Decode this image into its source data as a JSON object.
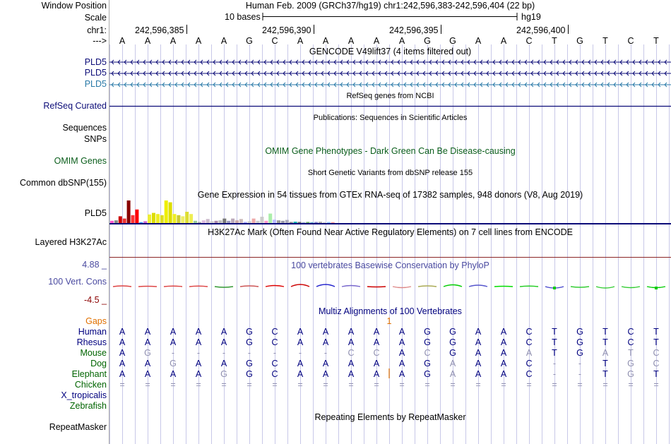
{
  "header": {
    "window_position_label": "Window Position",
    "scale_label": "Scale",
    "chrom_label": "chr1:",
    "arrow_label": "--->",
    "assembly_info": "Human Feb. 2009 (GRCh37/hg19)   chr1:242,596,383-242,596,404 (22 bp)",
    "scale_text": "10 bases",
    "db_name": "hg19",
    "ruler_ticks": [
      "242,596,385",
      "242,596,390",
      "242,596,395",
      "242,596,400"
    ]
  },
  "bases": [
    "A",
    "A",
    "A",
    "A",
    "A",
    "G",
    "C",
    "A",
    "A",
    "A",
    "A",
    "A",
    "G",
    "G",
    "A",
    "A",
    "C",
    "T",
    "G",
    "T",
    "C",
    "T"
  ],
  "tracks": {
    "gencode_title": "GENCODE V49lift37 (4 items filtered out)",
    "gencode_items": [
      "PLD5",
      "PLD5",
      "PLD5"
    ],
    "refseq_title": "RefSeq genes from NCBI",
    "refseq_label": "RefSeq Curated",
    "publications_title": "Publications: Sequences in Scientific Articles",
    "sequences_label": "Sequences",
    "snps_label": "SNPs",
    "omim_title": "OMIM Gene Phenotypes - Dark Green Can Be Disease-causing",
    "omim_label": "OMIM Genes",
    "dbsnp_title": "Short Genetic Variants from dbSNP release 155",
    "dbsnp_label": "Common dbSNP(155)",
    "gtex_title": "Gene Expression in 54 tissues from GTEx RNA-seq of 17382 samples, 948 donors (V8, Aug 2019)",
    "gtex_label": "PLD5",
    "h3k27ac_title": "H3K27Ac Mark (Often Found Near Active Regulatory Elements) on 7 cell lines from ENCODE",
    "h3k27ac_label": "Layered H3K27Ac",
    "cons_title": "100 vertebrates Basewise Conservation by PhyloP",
    "cons_label": "100 Vert. Cons",
    "cons_max": "4.88 _",
    "cons_min": "-4.5 _",
    "multiz_title": "Multiz Alignments of 100 Vertebrates",
    "repeat_title": "Repeating Elements by RepeatMasker",
    "repeat_label": "RepeatMasker"
  },
  "gtex_values": [
    0.1,
    0.12,
    0.3,
    0.2,
    1.0,
    0.35,
    0.6,
    0.04,
    0.08,
    0.38,
    0.45,
    0.4,
    0.35,
    1.0,
    0.92,
    0.4,
    0.35,
    0.3,
    0.5,
    0.4,
    0.1,
    0.05,
    0.12,
    0.18,
    0.08,
    0.1,
    0.12,
    0.2,
    0.1,
    0.2,
    0.12,
    0.18,
    0.05,
    0.08,
    0.2,
    0.1,
    0.28,
    0.1,
    0.42,
    0.15,
    0.12,
    0.1,
    0.14,
    0.05,
    0.06,
    0.05,
    0.04,
    0.05,
    0.04,
    0.05,
    0.06,
    0.04,
    0.05,
    0.04
  ],
  "gtex_colors": [
    "#f5c",
    "#888",
    "#c00",
    "#e33",
    "#800",
    "#f33",
    "#f00",
    "#39f",
    "#c6c",
    "#ee3",
    "#dd0",
    "#ee2",
    "#dd2",
    "#ee0",
    "#dd0",
    "#ee2",
    "#cc3",
    "#ee6",
    "#dd3",
    "#ee5",
    "#9c9",
    "#aaa",
    "#dbd",
    "#cbc",
    "#ccc",
    "#a8a",
    "#bbb",
    "#777",
    "#99b",
    "#bab",
    "#caa",
    "#cbb",
    "#aaf",
    "#ccc",
    "#eaa",
    "#ccc",
    "#ccc",
    "#f9c",
    "#aea",
    "#bbf",
    "#999",
    "#99a",
    "#aab",
    "#888",
    "#0aa",
    "#666",
    "#9ac",
    "#6a6",
    "#6ac",
    "#88c",
    "#aaa",
    "#ccc",
    "#9cf",
    "#f99"
  ],
  "cons_values": [
    0.2,
    0.1,
    0.15,
    0.15,
    -0.2,
    0.2,
    0.3,
    0.6,
    0.6,
    0.3,
    -0.1,
    -0.3,
    0.2,
    0.5,
    0.4,
    0.1,
    0.15,
    -0.4,
    -0.2,
    -0.4,
    -0.3,
    -0.3
  ],
  "cons_colors": [
    "#d44",
    "#d44",
    "#d44",
    "#d44",
    "#393",
    "#c55",
    "#d00",
    "#c00",
    "#22c",
    "#76c",
    "#c00",
    "#d88",
    "#aa5",
    "#0c0",
    "#55c",
    "#0d0",
    "#2c2",
    "#44c",
    "#3c3",
    "#3c3",
    "#3c3",
    "#0c0"
  ],
  "multiz": {
    "gaps_label": "Gaps",
    "gap_marker": "1",
    "species": [
      {
        "name": "Human",
        "color": "#00007f",
        "bases": [
          "A",
          "A",
          "A",
          "A",
          "A",
          "G",
          "C",
          "A",
          "A",
          "A",
          "A",
          "A",
          "G",
          "G",
          "A",
          "A",
          "C",
          "T",
          "G",
          "T",
          "C",
          "T"
        ]
      },
      {
        "name": "Rhesus",
        "color": "#00007f",
        "bases": [
          "A",
          "A",
          "A",
          "A",
          "A",
          "G",
          "C",
          "A",
          "A",
          "A",
          "A",
          "A",
          "G",
          "G",
          "A",
          "A",
          "C",
          "T",
          "G",
          "T",
          "C",
          "T"
        ]
      },
      {
        "name": "Mouse",
        "color": "#006400",
        "bases": [
          "A",
          "G",
          "-",
          "-",
          "-",
          "-",
          "-",
          "-",
          "-",
          "C",
          "C",
          "A",
          "C",
          "G",
          "A",
          "A",
          "A",
          "T",
          "G",
          "A",
          "T",
          "C"
        ]
      },
      {
        "name": "Dog",
        "color": "#006400",
        "bases": [
          "A",
          "A",
          "G",
          "A",
          "A",
          "G",
          "C",
          "A",
          "A",
          "A",
          "A",
          "A",
          "G",
          "A",
          "A",
          "A",
          "C",
          "-",
          "-",
          "T",
          "G",
          "C"
        ]
      },
      {
        "name": "Elephant",
        "color": "#006400",
        "bases": [
          "A",
          "A",
          "A",
          "A",
          "G",
          "G",
          "C",
          "A",
          "A",
          "A",
          "A",
          "A",
          "G",
          "A",
          "A",
          "A",
          "C",
          "-",
          "-",
          "T",
          "G",
          "T"
        ]
      },
      {
        "name": "Chicken",
        "color": "#006400",
        "bases": [
          "=",
          "=",
          "=",
          "=",
          "=",
          "=",
          "=",
          "=",
          "=",
          "=",
          "=",
          "=",
          "=",
          "=",
          "=",
          "=",
          "=",
          "=",
          "=",
          "=",
          "=",
          "="
        ]
      },
      {
        "name": "X_tropicalis",
        "color": "#00007f",
        "bases": []
      },
      {
        "name": "Zebrafish",
        "color": "#006400",
        "bases": []
      }
    ]
  },
  "colors": {
    "gencode": "#0c0c78",
    "gencode_alt": "#2a7aa8",
    "refseq": "#0c0c78",
    "omim": "#0b5e1c",
    "cons_label": "#4a4aa0",
    "cons_min": "#8b0000",
    "gaps": "#e07000",
    "grid": "#c8c8e8"
  }
}
